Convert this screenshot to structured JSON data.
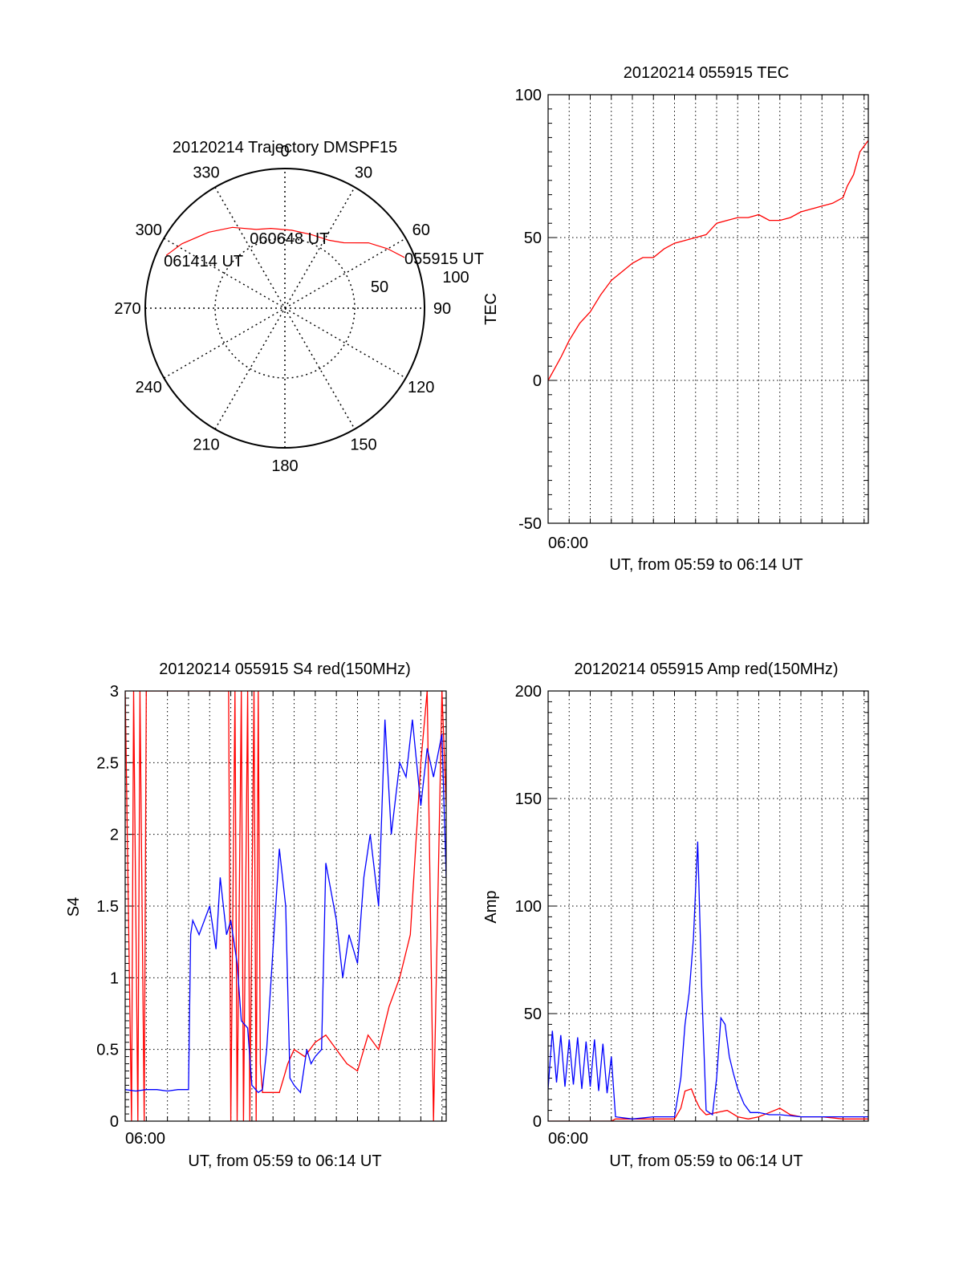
{
  "chart_data": [
    {
      "type": "polar",
      "title": "20120214 Trajectory DMSPF15",
      "azimuth_labels": [
        "0",
        "30",
        "60",
        "90",
        "120",
        "150",
        "180",
        "210",
        "240",
        "270",
        "300",
        "330"
      ],
      "radial_labels": [
        "50",
        "100"
      ],
      "rlim": [
        0,
        100
      ],
      "grid": true,
      "trajectory_color": "#ff0000",
      "trajectory": [
        {
          "az": 67,
          "r": 93,
          "label": "055915 UT"
        },
        {
          "az": 60,
          "r": 85
        },
        {
          "az": 52,
          "r": 76
        },
        {
          "az": 42,
          "r": 63
        },
        {
          "az": 33,
          "r": 58
        },
        {
          "az": 20,
          "r": 56
        },
        {
          "az": 5,
          "r": 56
        },
        {
          "az": -10,
          "r": 58
        },
        {
          "az": -20,
          "r": 60,
          "label": "060648 UT"
        },
        {
          "az": -33,
          "r": 69
        },
        {
          "az": -45,
          "r": 77
        },
        {
          "az": -58,
          "r": 87
        },
        {
          "az": -66,
          "r": 93,
          "label": "061414 UT"
        }
      ]
    },
    {
      "type": "line",
      "title": "20120214 055915 TEC",
      "ylabel": "TEC",
      "xlabel": "UT, from 05:59 to 06:14 UT",
      "xtick_labels": [
        "06:00"
      ],
      "ylim": [
        -50,
        100
      ],
      "yticks": [
        -50,
        0,
        50,
        100
      ],
      "xlim_minutes": [
        0,
        15.2
      ],
      "grid": true,
      "series": [
        {
          "color": "#ff0000",
          "x": [
            0,
            0.3,
            0.6,
            1,
            1.5,
            2,
            2.5,
            3,
            3.5,
            4,
            4.5,
            5,
            5.5,
            6,
            6.5,
            7,
            7.5,
            8,
            8.5,
            9,
            9.5,
            10,
            10.5,
            11,
            11.5,
            12,
            12.5,
            13,
            13.5,
            14,
            14.2,
            14.5,
            14.8,
            15.2
          ],
          "y": [
            0,
            4,
            8,
            14,
            20,
            24,
            30,
            35,
            38,
            41,
            43,
            43,
            46,
            48,
            49,
            50,
            51,
            55,
            56,
            57,
            57,
            58,
            56,
            56,
            57,
            59,
            60,
            61,
            62,
            64,
            68,
            72,
            80,
            84
          ]
        }
      ]
    },
    {
      "type": "line",
      "title": "20120214 055915 S4 red(150MHz)",
      "ylabel": "S4",
      "xlabel": "UT, from 05:59 to 06:14 UT",
      "xtick_labels": [
        "06:00"
      ],
      "ylim": [
        0,
        3
      ],
      "yticks": [
        0,
        0.5,
        1,
        1.5,
        2,
        2.5,
        3
      ],
      "ytick_labels": [
        "0",
        "0.5",
        "1",
        "1.5",
        "2",
        "2.5",
        "3"
      ],
      "xlim_minutes": [
        0,
        15.2
      ],
      "grid": true,
      "series": [
        {
          "color": "#ff0000",
          "x": [
            0,
            0.3,
            0.4,
            0.6,
            0.7,
            0.9,
            1,
            4.9,
            5,
            5.2,
            5.3,
            5.5,
            5.6,
            5.8,
            5.9,
            6.1,
            6.2,
            6.3,
            6.4,
            6.5,
            7.3,
            7.5,
            7.7,
            8,
            8.5,
            9,
            9.5,
            10,
            10.5,
            11,
            11.5,
            12,
            12.5,
            13,
            13.5,
            14,
            14.3,
            14.6,
            15,
            15.2
          ],
          "y": [
            3,
            0,
            3,
            0,
            3,
            0,
            3,
            3,
            0,
            3,
            0,
            3,
            0,
            3,
            0,
            3,
            0,
            3,
            0.4,
            0.2,
            0.2,
            0.3,
            0.4,
            0.5,
            0.45,
            0.55,
            0.6,
            0.5,
            0.4,
            0.35,
            0.6,
            0.5,
            0.8,
            1.0,
            1.3,
            2.5,
            3,
            0,
            3,
            2.2
          ]
        },
        {
          "color": "#0000ff",
          "x": [
            0,
            0.5,
            1,
            1.5,
            2,
            2.5,
            3,
            3.1,
            3.2,
            3.5,
            4,
            4.3,
            4.5,
            4.8,
            5,
            5.3,
            5.5,
            5.8,
            6,
            6.3,
            6.5,
            6.7,
            7,
            7.3,
            7.6,
            7.8,
            8,
            8.3,
            8.6,
            8.8,
            9,
            9.3,
            9.5,
            10,
            10.3,
            10.6,
            11,
            11.3,
            11.6,
            12,
            12.3,
            12.6,
            13,
            13.3,
            13.6,
            14,
            14.3,
            14.6,
            15,
            15.2
          ],
          "y": [
            0.22,
            0.21,
            0.22,
            0.22,
            0.21,
            0.22,
            0.22,
            1.3,
            1.4,
            1.3,
            1.5,
            1.2,
            1.7,
            1.3,
            1.4,
            1.1,
            0.7,
            0.65,
            0.25,
            0.2,
            0.22,
            0.5,
            1.2,
            1.9,
            1.5,
            0.3,
            0.25,
            0.2,
            0.5,
            0.4,
            0.45,
            0.5,
            1.8,
            1.4,
            1.0,
            1.3,
            1.1,
            1.7,
            2.0,
            1.5,
            2.8,
            2.0,
            2.5,
            2.4,
            2.8,
            2.2,
            2.6,
            2.4,
            2.7,
            1.7
          ]
        }
      ]
    },
    {
      "type": "line",
      "title": "20120214 055915 Amp red(150MHz)",
      "ylabel": "Amp",
      "xlabel": "UT, from 05:59 to 06:14 UT",
      "xtick_labels": [
        "06:00"
      ],
      "ylim": [
        0,
        200
      ],
      "yticks": [
        0,
        50,
        100,
        150,
        200
      ],
      "xlim_minutes": [
        0,
        15.2
      ],
      "grid": true,
      "series": [
        {
          "color": "#ff0000",
          "x": [
            0,
            2,
            3,
            3.2,
            6,
            6.3,
            6.5,
            6.8,
            7,
            7.2,
            7.5,
            8,
            8.5,
            9,
            9.5,
            10,
            10.5,
            11,
            11.5,
            12,
            13,
            14,
            15.2
          ],
          "y": [
            0,
            0,
            0,
            1,
            1,
            6,
            14,
            15,
            10,
            6,
            3,
            4,
            5,
            2,
            1,
            2,
            4,
            6,
            3,
            2,
            2,
            1,
            1
          ]
        },
        {
          "color": "#0000ff",
          "x": [
            0,
            0.2,
            0.4,
            0.6,
            0.8,
            1,
            1.2,
            1.4,
            1.6,
            1.8,
            2,
            2.2,
            2.4,
            2.6,
            2.8,
            3,
            3.2,
            4,
            5,
            6,
            6.3,
            6.5,
            6.7,
            6.9,
            7.1,
            7.3,
            7.5,
            7.8,
            8,
            8.2,
            8.4,
            8.6,
            8.8,
            9,
            9.3,
            9.6,
            10,
            10.5,
            11,
            12,
            13,
            14,
            15.2
          ],
          "y": [
            15,
            42,
            18,
            40,
            16,
            38,
            17,
            39,
            15,
            37,
            16,
            38,
            14,
            36,
            13,
            30,
            2,
            1,
            2,
            2,
            20,
            45,
            60,
            85,
            130,
            60,
            5,
            3,
            20,
            48,
            45,
            30,
            22,
            15,
            8,
            4,
            4,
            3,
            3,
            2,
            2,
            2,
            2
          ]
        }
      ]
    }
  ]
}
